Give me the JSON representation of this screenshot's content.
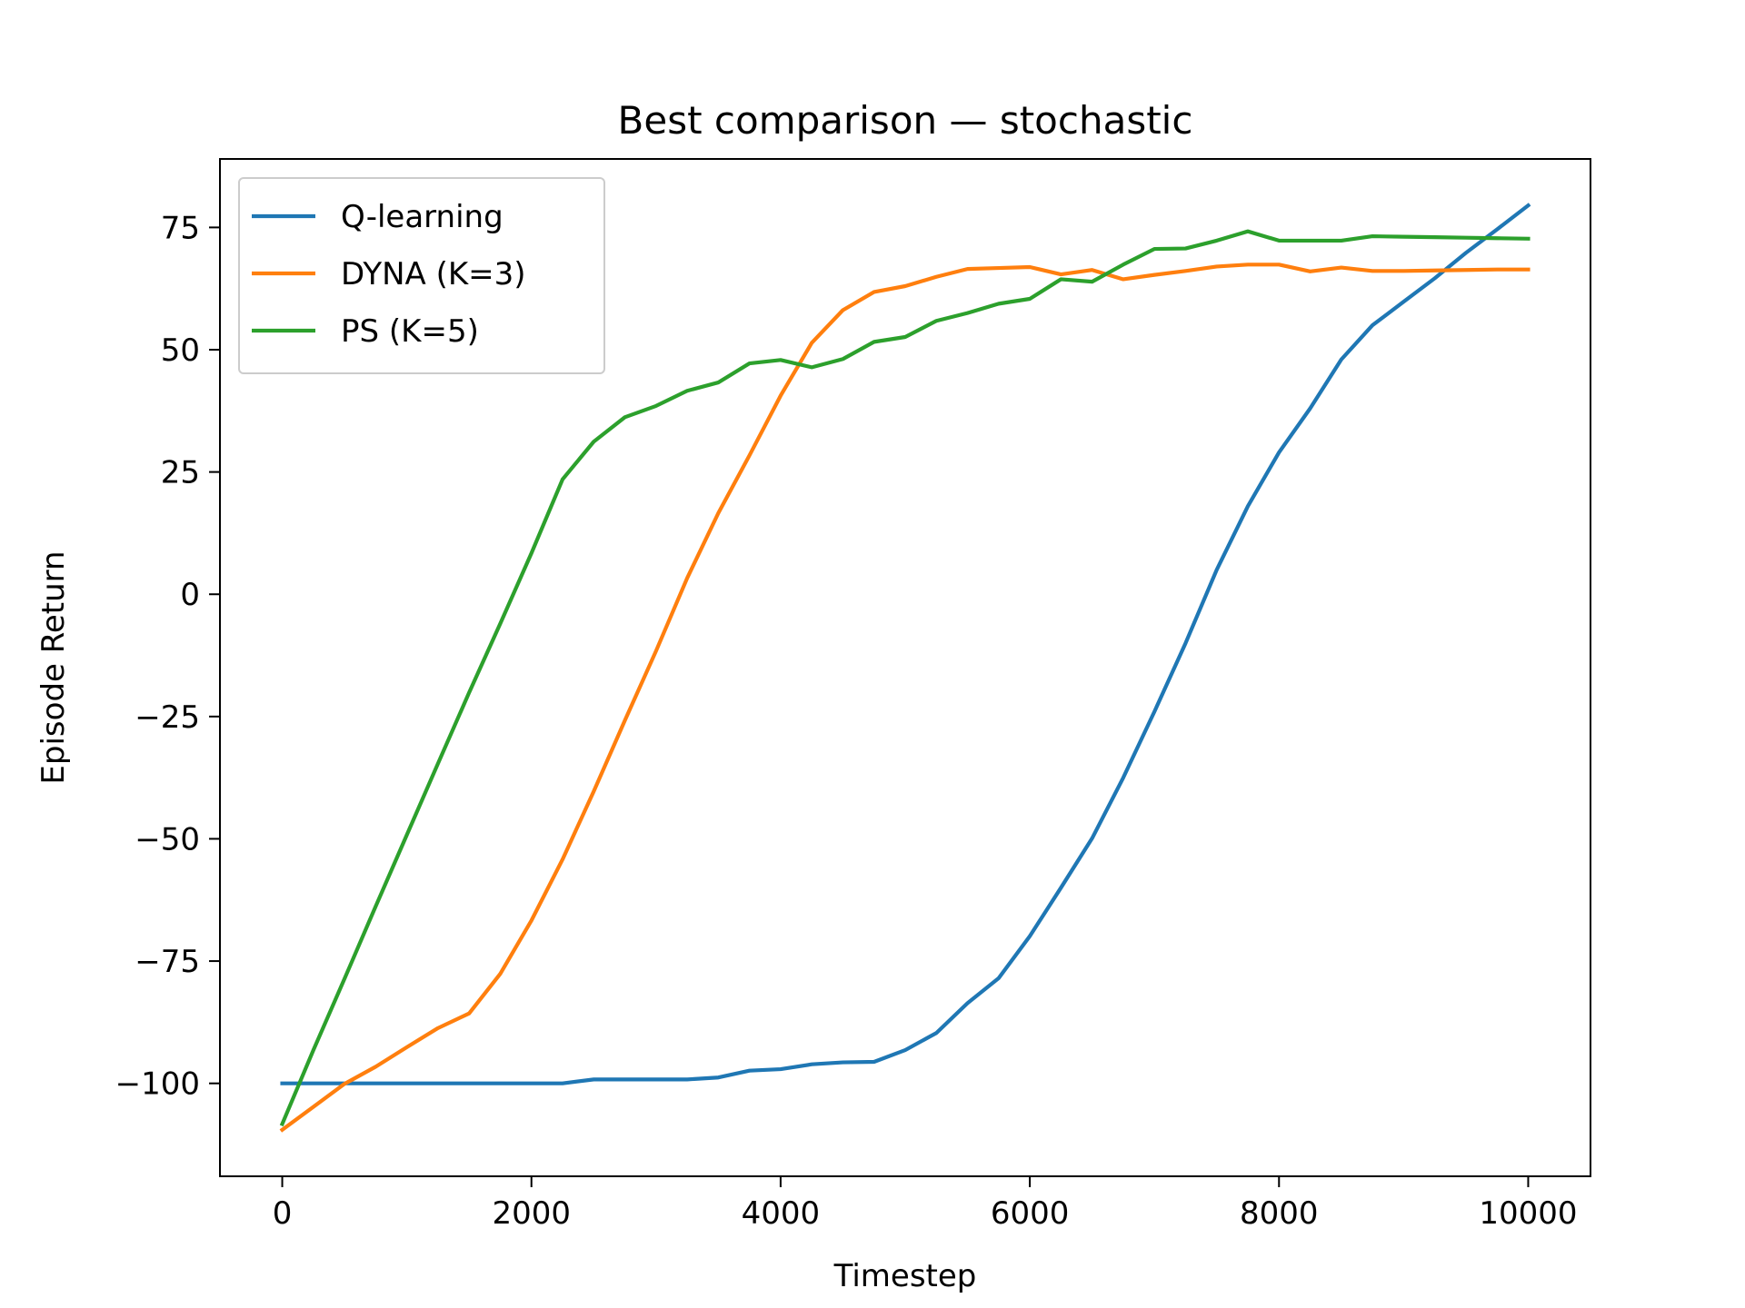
{
  "chart_data": {
    "type": "line",
    "title": "Best comparison — stochastic",
    "xlabel": "Timestep",
    "ylabel": "Episode Return",
    "xlim": [
      -500,
      10500
    ],
    "ylim": [
      -119,
      89
    ],
    "xticks": [
      0,
      2000,
      4000,
      6000,
      8000,
      10000
    ],
    "xtick_labels": [
      "0",
      "2000",
      "4000",
      "6000",
      "8000",
      "10000"
    ],
    "yticks": [
      -100,
      -75,
      -50,
      -25,
      0,
      25,
      50,
      75
    ],
    "ytick_labels": [
      "−100",
      "−75",
      "−50",
      "−25",
      "0",
      "25",
      "50",
      "75"
    ],
    "grid": false,
    "legend_position": "upper-left",
    "x": [
      0,
      250,
      500,
      750,
      1000,
      1250,
      1500,
      1750,
      2000,
      2250,
      2500,
      2750,
      3000,
      3250,
      3500,
      3750,
      4000,
      4250,
      4500,
      4750,
      5000,
      5250,
      5500,
      5750,
      6000,
      6250,
      6500,
      6750,
      7000,
      7250,
      7500,
      7750,
      8000,
      8250,
      8500,
      8750,
      9000,
      9250,
      9500,
      9750,
      10000
    ],
    "series": [
      {
        "name": "Q-learning",
        "color": "#1f77b4",
        "values": [
          -100,
          -100,
          -100,
          -100,
          -100,
          -100,
          -100,
          -100,
          -100,
          -100,
          -99.2,
          -99.2,
          -99.2,
          -99.2,
          -98.8,
          -97.4,
          -97.1,
          -96.1,
          -95.7,
          -95.6,
          -93.2,
          -89.7,
          -83.6,
          -78.5,
          -69.9,
          -60.0,
          -49.9,
          -37.5,
          -24.0,
          -10.0,
          5.0,
          18.0,
          29.0,
          38.0,
          48.0,
          55.0,
          59.8,
          64.6,
          69.8,
          74.6,
          79.5
        ]
      },
      {
        "name": "DYNA (K=3)",
        "color": "#ff7f0e",
        "values": [
          -109.5,
          -104.8,
          -100.1,
          -96.6,
          -92.6,
          -88.7,
          -85.7,
          -77.6,
          -66.7,
          -54.2,
          -40.3,
          -25.8,
          -11.6,
          3.3,
          16.6,
          28.4,
          40.6,
          51.4,
          58.1,
          61.8,
          63.0,
          64.9,
          66.5,
          66.7,
          66.9,
          65.4,
          66.3,
          64.4,
          65.3,
          66.1,
          67.0,
          67.4,
          67.4,
          66.0,
          66.8,
          66.1,
          66.1,
          66.2,
          66.3,
          66.4,
          66.4
        ]
      },
      {
        "name": "PS (K=5)",
        "color": "#2ca02c",
        "values": [
          -108.3,
          -93.2,
          -78.6,
          -63.8,
          -49.2,
          -34.6,
          -20.1,
          -6.0,
          8.4,
          23.5,
          31.2,
          36.2,
          38.5,
          41.6,
          43.3,
          47.2,
          47.9,
          46.4,
          48.1,
          51.6,
          52.6,
          55.9,
          57.5,
          59.4,
          60.4,
          64.4,
          63.9,
          67.4,
          70.6,
          70.7,
          72.3,
          74.2,
          72.3,
          72.3,
          72.3,
          73.2,
          73.1,
          73.0,
          72.9,
          72.8,
          72.7
        ]
      }
    ]
  }
}
